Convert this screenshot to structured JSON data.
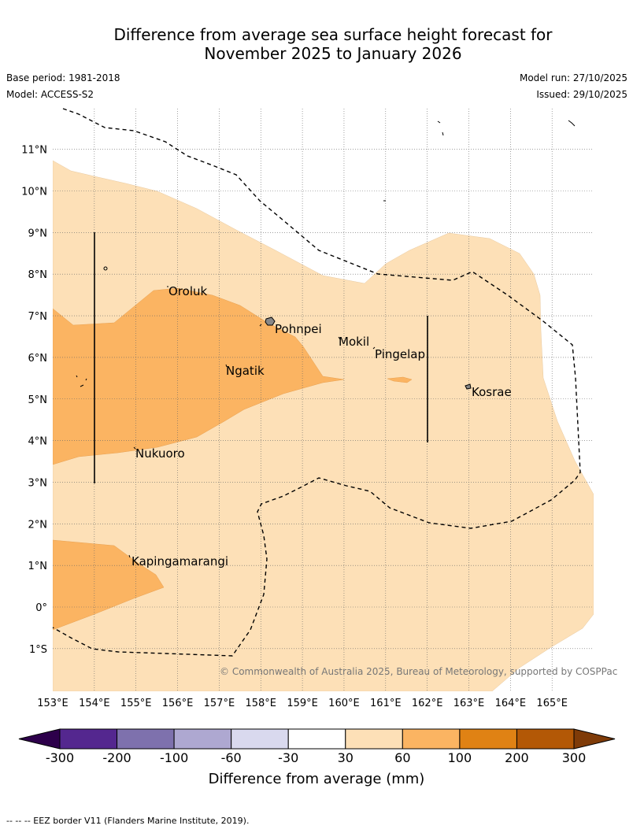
{
  "title": {
    "line1": "Difference from average sea surface height forecast for",
    "line2": "November 2025 to January 2026"
  },
  "meta": {
    "base_period": "Base period: 1981-2018",
    "model": "Model: ACCESS-S2",
    "model_run": "Model run: 27/10/2025",
    "issued": "Issued: 29/10/2025"
  },
  "map": {
    "lat_labels": [
      "11°N",
      "10°N",
      "9°N",
      "8°N",
      "7°N",
      "6°N",
      "5°N",
      "4°N",
      "3°N",
      "2°N",
      "1°N",
      "0°",
      "1°S"
    ],
    "lon_labels": [
      "153°E",
      "154°E",
      "155°E",
      "156°E",
      "157°E",
      "158°E",
      "159°E",
      "160°E",
      "161°E",
      "162°E",
      "163°E",
      "164°E",
      "165°E"
    ],
    "places": [
      "Oroluk",
      "Pohnpei",
      "Mokil",
      "Pingelap",
      "Ngatik",
      "Kosrae",
      "Nukuoro",
      "Kapingamarangi"
    ],
    "copyright": "© Commonwealth of Australia 2025, Bureau of Meteorology, supported by COSPPac"
  },
  "colorbar": {
    "ticks": [
      "-300",
      "-200",
      "-100",
      "-60",
      "-30",
      "30",
      "60",
      "100",
      "200",
      "300"
    ],
    "label": "Difference from average (mm)",
    "colors": [
      "#54278f",
      "#7e71ad",
      "#aea8d1",
      "#d9d9ee",
      "#ffffff",
      "#fde0b7",
      "#fbb462",
      "#e08214",
      "#b35806"
    ],
    "under_color": "#2d004b",
    "over_color": "#7f3b08"
  },
  "footer": "--  --  -- EEZ border V11 (Flanders Marine Institute, 2019)."
}
